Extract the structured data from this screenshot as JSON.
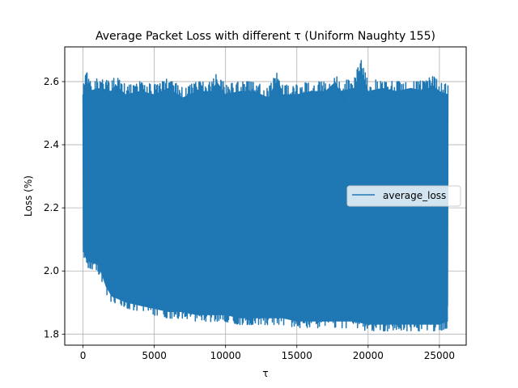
{
  "chart_data": {
    "type": "line",
    "title": "Average Packet Loss with different τ (Uniform Naughty 155)",
    "xlabel": "τ",
    "ylabel": "Loss (%)",
    "xlim": [
      -1280,
      26880
    ],
    "ylim": [
      1.765,
      2.71
    ],
    "xticks": [
      0,
      5000,
      10000,
      15000,
      20000,
      25000
    ],
    "xtick_labels": [
      "0",
      "5000",
      "10000",
      "15000",
      "20000",
      "25000"
    ],
    "yticks": [
      1.8,
      2.0,
      2.2,
      2.4,
      2.6
    ],
    "ytick_labels": [
      "1.8",
      "2.0",
      "2.2",
      "2.4",
      "2.6"
    ],
    "grid": true,
    "legend_position": "center-right",
    "series": [
      {
        "name": "average_loss",
        "color": "#1f77b4",
        "x_range": [
          0,
          25600
        ],
        "envelope_upper": [
          [
            0,
            2.62
          ],
          [
            100,
            2.61
          ],
          [
            250,
            2.64
          ],
          [
            500,
            2.6
          ],
          [
            1000,
            2.61
          ],
          [
            2000,
            2.6
          ],
          [
            2300,
            2.62
          ],
          [
            3000,
            2.59
          ],
          [
            4000,
            2.6
          ],
          [
            5000,
            2.59
          ],
          [
            6000,
            2.61
          ],
          [
            7000,
            2.58
          ],
          [
            8000,
            2.6
          ],
          [
            9000,
            2.6
          ],
          [
            9400,
            2.63
          ],
          [
            10000,
            2.59
          ],
          [
            11000,
            2.6
          ],
          [
            12000,
            2.6
          ],
          [
            13000,
            2.58
          ],
          [
            13700,
            2.64
          ],
          [
            14000,
            2.59
          ],
          [
            15000,
            2.59
          ],
          [
            16000,
            2.6
          ],
          [
            17000,
            2.6
          ],
          [
            17700,
            2.63
          ],
          [
            18000,
            2.6
          ],
          [
            19000,
            2.61
          ],
          [
            19500,
            2.67
          ],
          [
            20000,
            2.6
          ],
          [
            21000,
            2.61
          ],
          [
            22000,
            2.6
          ],
          [
            23000,
            2.61
          ],
          [
            24000,
            2.6
          ],
          [
            24500,
            2.62
          ],
          [
            25000,
            2.6
          ],
          [
            25600,
            2.59
          ]
        ],
        "envelope_lower": [
          [
            0,
            2.05
          ],
          [
            100,
            2.03
          ],
          [
            300,
            2.01
          ],
          [
            1000,
            2.0
          ],
          [
            1300,
            1.97
          ],
          [
            1600,
            1.93
          ],
          [
            2000,
            1.9
          ],
          [
            3000,
            1.88
          ],
          [
            4000,
            1.87
          ],
          [
            5000,
            1.86
          ],
          [
            6000,
            1.85
          ],
          [
            7000,
            1.85
          ],
          [
            8000,
            1.84
          ],
          [
            9000,
            1.84
          ],
          [
            10000,
            1.84
          ],
          [
            11000,
            1.83
          ],
          [
            12000,
            1.83
          ],
          [
            13000,
            1.83
          ],
          [
            14000,
            1.83
          ],
          [
            15000,
            1.82
          ],
          [
            16000,
            1.82
          ],
          [
            17000,
            1.82
          ],
          [
            18000,
            1.82
          ],
          [
            19000,
            1.82
          ],
          [
            20000,
            1.81
          ],
          [
            21000,
            1.81
          ],
          [
            22000,
            1.81
          ],
          [
            23000,
            1.81
          ],
          [
            24000,
            1.81
          ],
          [
            25000,
            1.81
          ],
          [
            25600,
            1.82
          ]
        ]
      }
    ]
  }
}
